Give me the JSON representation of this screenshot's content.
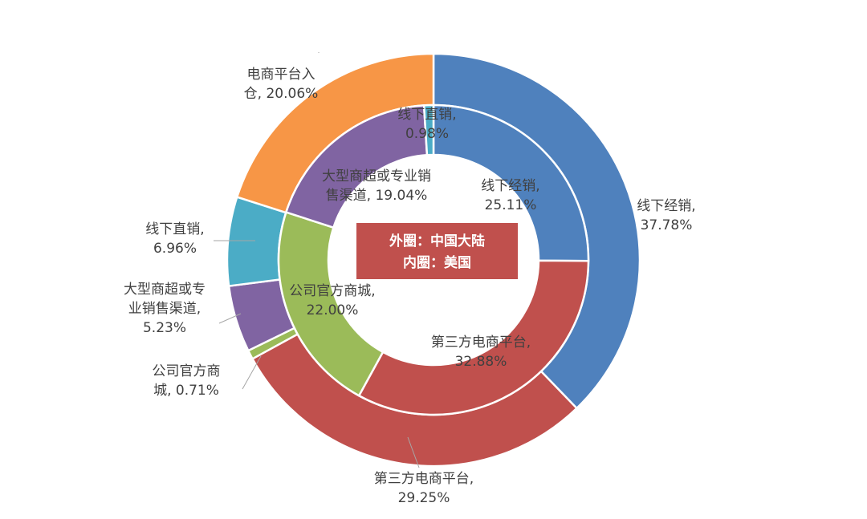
{
  "center_box": {
    "line1": "外圈：中国大陆",
    "line2": "内圈：美国",
    "color": "#C0504D"
  },
  "chart_data": {
    "type": "doughnut",
    "rings": [
      {
        "ring": "outer",
        "segments": [
          {
            "label_lines": [
              "线下经销,",
              "37.78%"
            ],
            "value": 37.78,
            "color": "#4F81BD"
          },
          {
            "label_lines": [
              "第三方电商平台,",
              "29.25%"
            ],
            "value": 29.25,
            "color": "#C0504D"
          },
          {
            "label_lines": [
              "公司官方商",
              "城, 0.71%"
            ],
            "value": 0.71,
            "color": "#9BBB59"
          },
          {
            "label_lines": [
              "大型商超或专",
              "业销售渠道,",
              "5.23%"
            ],
            "value": 5.23,
            "color": "#8064A2"
          },
          {
            "label_lines": [
              "线下直销,",
              "6.96%"
            ],
            "value": 6.96,
            "color": "#4BACC6"
          },
          {
            "label_lines": [
              "电商平台入",
              "仓, 20.06%"
            ],
            "value": 20.06,
            "color": "#F79646"
          }
        ]
      },
      {
        "ring": "inner",
        "segments": [
          {
            "label_lines": [
              "线下经销,",
              "25.11%"
            ],
            "value": 25.11,
            "color": "#4F81BD"
          },
          {
            "label_lines": [
              "第三方电商平台,",
              "32.88%"
            ],
            "value": 32.88,
            "color": "#C0504D"
          },
          {
            "label_lines": [
              "公司官方商城,",
              "22.00%"
            ],
            "value": 22.0,
            "color": "#9BBB59"
          },
          {
            "label_lines": [
              "大型商超或专业销",
              "售渠道, 19.04%"
            ],
            "value": 19.04,
            "color": "#8064A2"
          },
          {
            "label_lines": [
              "线下直销,",
              "0.98%"
            ],
            "value": 0.98,
            "color": "#4BACC6"
          }
        ]
      }
    ]
  }
}
